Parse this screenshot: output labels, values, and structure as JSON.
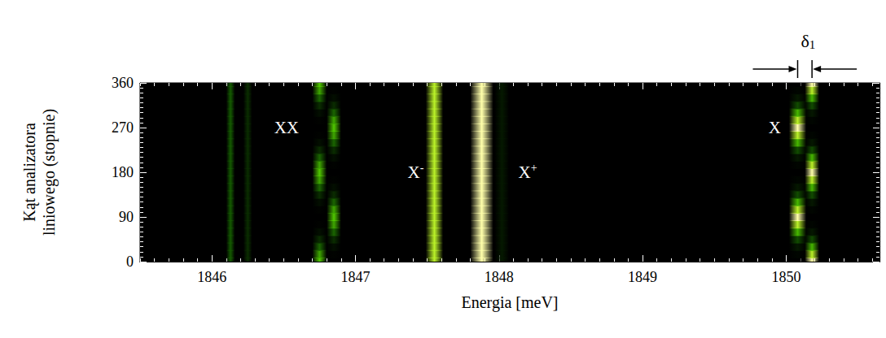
{
  "chart_data": {
    "type": "heatmap",
    "x_label": "Energia [meV]",
    "y_label": "Kąt analizatora liniowego (stopnie)",
    "xlim": [
      1845.5,
      1850.65
    ],
    "xticks": [
      1846,
      1847,
      1848,
      1849,
      1850
    ],
    "ylim": [
      0,
      360
    ],
    "yticks": [
      0,
      90,
      180,
      270,
      360
    ],
    "tick_labels": true,
    "grid": false,
    "intensity_range": [
      0,
      1
    ],
    "angles": [
      0,
      15,
      30,
      45,
      60,
      75,
      90,
      105,
      120,
      135,
      150,
      165,
      180,
      195,
      210,
      225,
      240,
      255,
      270,
      285,
      300,
      315,
      330,
      345,
      360
    ],
    "lines": [
      {
        "energy": 1846.13,
        "fwhm": 0.03,
        "intensity": [
          0.3,
          0.3,
          0.3,
          0.3,
          0.3,
          0.3,
          0.3,
          0.3,
          0.3,
          0.3,
          0.3,
          0.3,
          0.3,
          0.3,
          0.3,
          0.3,
          0.3,
          0.3,
          0.3,
          0.3,
          0.3,
          0.3,
          0.3,
          0.3,
          0.3
        ]
      },
      {
        "energy": 1846.25,
        "fwhm": 0.03,
        "intensity": [
          0.15,
          0.15,
          0.15,
          0.15,
          0.15,
          0.15,
          0.15,
          0.15,
          0.15,
          0.15,
          0.15,
          0.15,
          0.15,
          0.15,
          0.15,
          0.15,
          0.15,
          0.15,
          0.15,
          0.15,
          0.15,
          0.15,
          0.15,
          0.15,
          0.15
        ]
      },
      {
        "energy": 1846.75,
        "fwhm": 0.05,
        "intensity": [
          0.6,
          0.51,
          0.33,
          0.15,
          0.05,
          0.01,
          0,
          0.01,
          0.05,
          0.15,
          0.33,
          0.51,
          0.6,
          0.51,
          0.33,
          0.15,
          0.05,
          0.01,
          0,
          0.01,
          0.05,
          0.15,
          0.33,
          0.51,
          0.6
        ]
      },
      {
        "energy": 1846.85,
        "fwhm": 0.05,
        "intensity": [
          0,
          0.01,
          0.05,
          0.15,
          0.33,
          0.51,
          0.6,
          0.51,
          0.33,
          0.15,
          0.05,
          0.01,
          0,
          0.01,
          0.05,
          0.15,
          0.33,
          0.51,
          0.6,
          0.51,
          0.33,
          0.15,
          0.05,
          0.01,
          0
        ]
      },
      {
        "energy": 1847.55,
        "fwhm": 0.06,
        "intensity": [
          0.85,
          0.85,
          0.85,
          0.85,
          0.85,
          0.85,
          0.85,
          0.85,
          0.85,
          0.85,
          0.85,
          0.85,
          0.85,
          0.85,
          0.85,
          0.85,
          0.85,
          0.85,
          0.85,
          0.85,
          0.85,
          0.85,
          0.85,
          0.85,
          0.85
        ]
      },
      {
        "energy": 1847.88,
        "fwhm": 0.08,
        "intensity": [
          1,
          1,
          1,
          1,
          1,
          1,
          1,
          1,
          1,
          1,
          1,
          1,
          1,
          1,
          1,
          1,
          1,
          1,
          1,
          1,
          1,
          1,
          1,
          1,
          1
        ]
      },
      {
        "energy": 1848.02,
        "fwhm": 0.05,
        "intensity": [
          0.08,
          0.08,
          0.08,
          0.08,
          0.08,
          0.08,
          0.08,
          0.08,
          0.08,
          0.08,
          0.08,
          0.08,
          0.08,
          0.08,
          0.08,
          0.08,
          0.08,
          0.08,
          0.08,
          0.08,
          0.08,
          0.08,
          0.08,
          0.08,
          0.08
        ]
      },
      {
        "energy": 1850.08,
        "fwhm": 0.06,
        "intensity": [
          0,
          0.02,
          0.08,
          0.25,
          0.55,
          0.85,
          1,
          0.85,
          0.55,
          0.25,
          0.08,
          0.02,
          0,
          0.02,
          0.08,
          0.25,
          0.55,
          0.85,
          1,
          0.85,
          0.55,
          0.25,
          0.08,
          0.02,
          0
        ]
      },
      {
        "energy": 1850.18,
        "fwhm": 0.05,
        "intensity": [
          1,
          0.85,
          0.55,
          0.25,
          0.08,
          0.02,
          0,
          0.02,
          0.08,
          0.25,
          0.55,
          0.85,
          1,
          0.85,
          0.55,
          0.25,
          0.08,
          0.02,
          0,
          0.02,
          0.08,
          0.25,
          0.55,
          0.85,
          1
        ]
      }
    ],
    "annotations": [
      {
        "text": "XX",
        "sup": "",
        "x": 1846.52,
        "y": 270
      },
      {
        "text": "X",
        "sup": "-",
        "x": 1847.42,
        "y": 180
      },
      {
        "text": "X",
        "sup": "+",
        "x": 1848.2,
        "y": 180
      },
      {
        "text": "X",
        "sup": "",
        "x": 1849.92,
        "y": 270
      }
    ],
    "delta": {
      "text": "δ",
      "subscript": "1",
      "between": [
        1850.08,
        1850.18
      ]
    }
  }
}
